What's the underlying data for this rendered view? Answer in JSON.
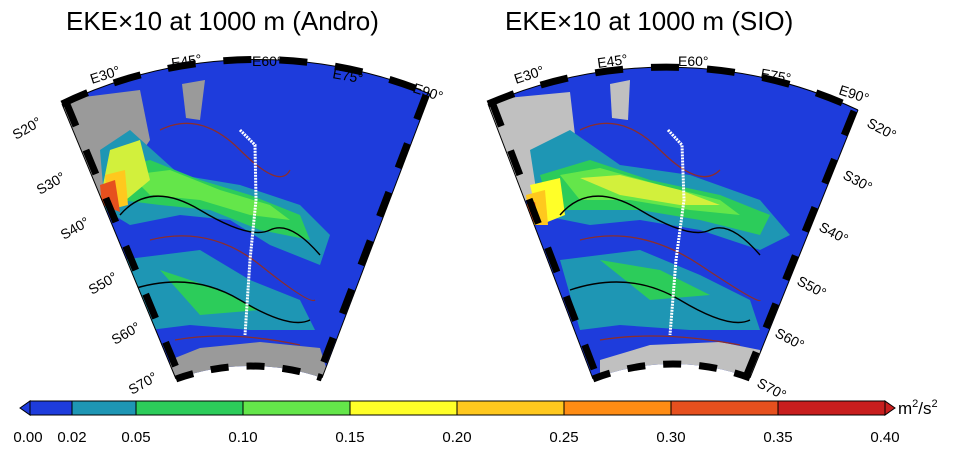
{
  "panels": [
    {
      "title": "EKE×10 at 1000 m (Andro)",
      "lon_labels": [
        "E30°",
        "E45°",
        "E60°",
        "E75°",
        "E90°"
      ],
      "lat_labels": [
        "S20°",
        "S30°",
        "S40°",
        "S50°",
        "S60°",
        "S70°"
      ]
    },
    {
      "title": "EKE×10 at 1000 m (SIO)",
      "lon_labels": [
        "E30°",
        "E45°",
        "E60°",
        "E75°",
        "E90°"
      ],
      "lat_labels": [
        "S20°",
        "S30°",
        "S40°",
        "S50°",
        "S60°",
        "S70°"
      ]
    }
  ],
  "colorbar": {
    "unit_base": "m",
    "unit_exp1": "2",
    "unit_mid": "/s",
    "unit_exp2": "2",
    "ticks": [
      "0.00",
      "0.02",
      "0.05",
      "0.10",
      "0.15",
      "0.20",
      "0.25",
      "0.30",
      "0.35",
      "0.40"
    ],
    "colors": [
      "#1e3cdc",
      "#1e96b4",
      "#2ccc5a",
      "#64e64a",
      "#d2f03c",
      "#ffff28",
      "#ffc81e",
      "#ff8c14",
      "#e6501e",
      "#c81e1e"
    ]
  }
}
